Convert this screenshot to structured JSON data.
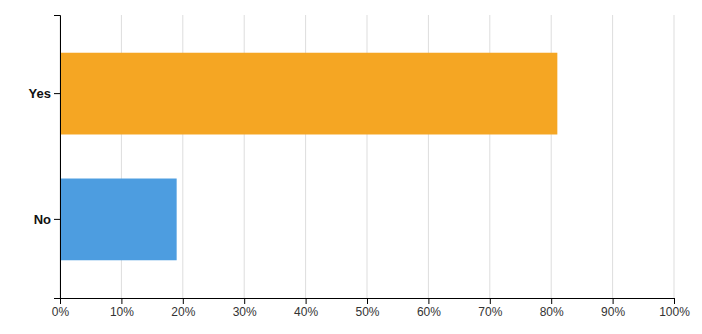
{
  "chart_data": {
    "type": "bar",
    "orientation": "horizontal",
    "categories": [
      "No",
      "Yes"
    ],
    "values": [
      0.19,
      0.81
    ],
    "colors": [
      "#4d9de0",
      "#f5a623"
    ],
    "xlim": [
      0,
      1.0
    ],
    "xticks": [
      {
        "value": 0.0,
        "label": "0%"
      },
      {
        "value": 0.1,
        "label": "10%"
      },
      {
        "value": 0.2,
        "label": "20%"
      },
      {
        "value": 0.3,
        "label": "30%"
      },
      {
        "value": 0.4,
        "label": "40%"
      },
      {
        "value": 0.5,
        "label": "50%"
      },
      {
        "value": 0.6,
        "label": "60%"
      },
      {
        "value": 0.7,
        "label": "70%"
      },
      {
        "value": 0.8,
        "label": "80%"
      },
      {
        "value": 0.9,
        "label": "90%"
      },
      {
        "value": 1.0,
        "label": "100%"
      }
    ],
    "grid": true
  }
}
